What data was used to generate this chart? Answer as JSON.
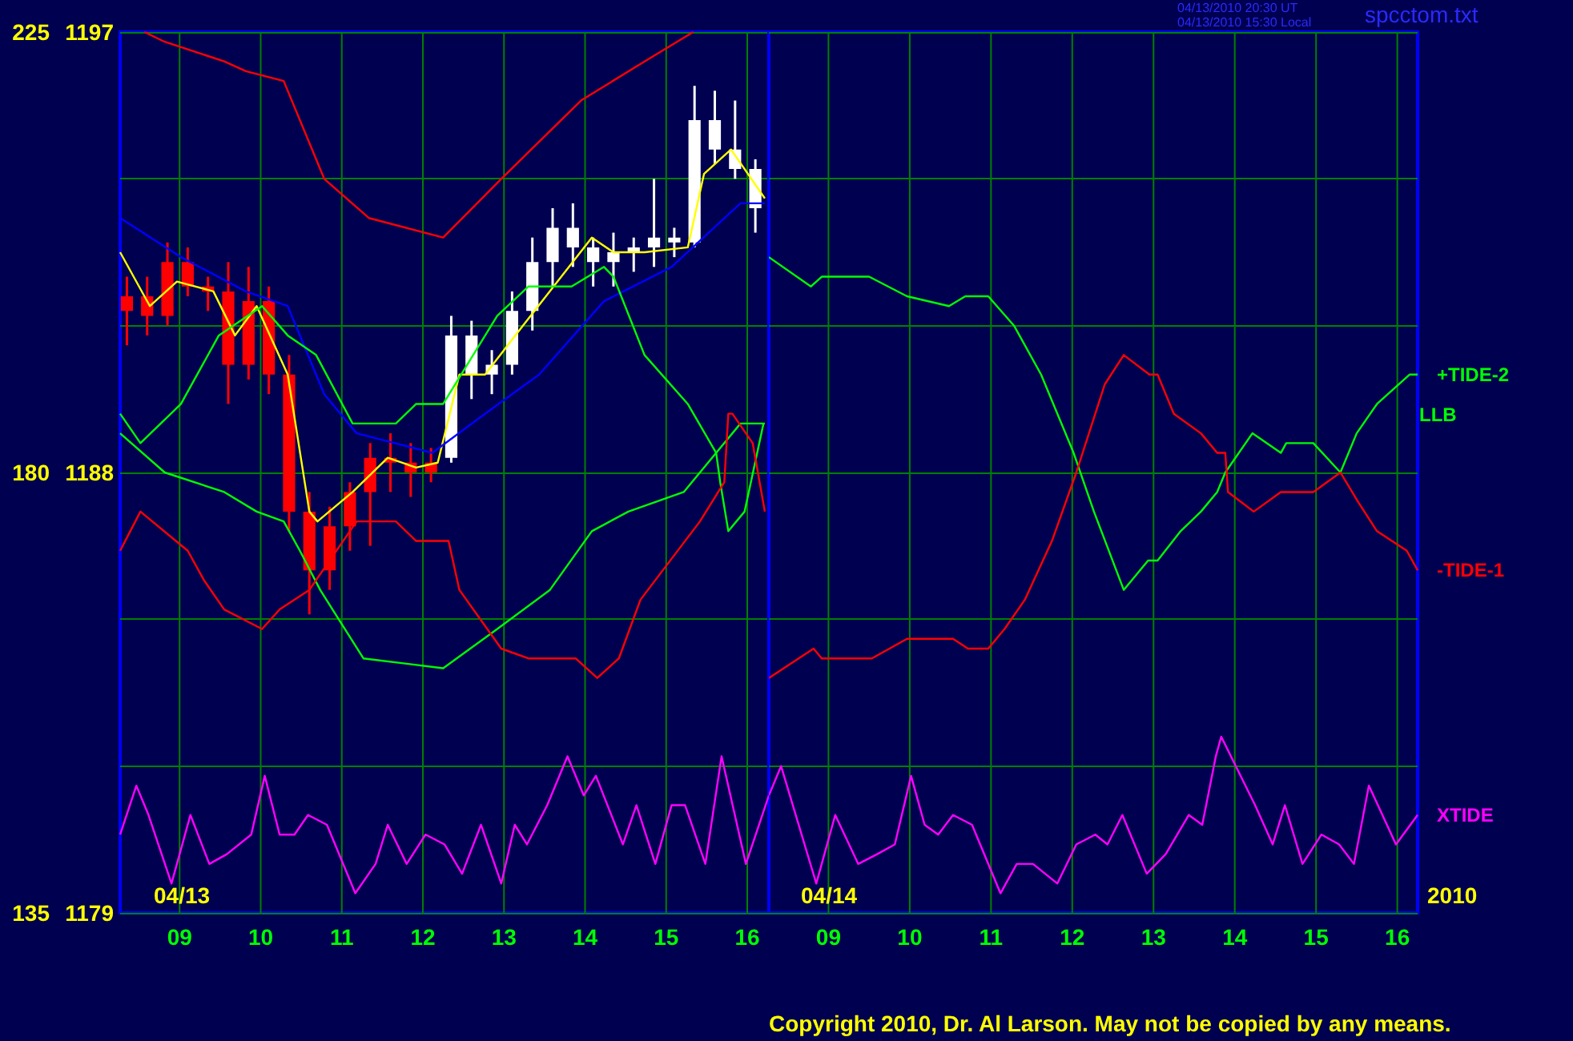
{
  "chart_data": [
    {
      "type": "candlestick",
      "xlim": [
        "2010-04-13T08:16",
        "2010-04-13T16:16"
      ],
      "xticks": [
        {
          "value": "2010-04-13T09:00",
          "label": "09"
        },
        {
          "value": "2010-04-13T10:00",
          "label": "10"
        },
        {
          "value": "2010-04-13T11:00",
          "label": "11"
        },
        {
          "value": "2010-04-13T12:00",
          "label": "12"
        },
        {
          "value": "2010-04-13T13:00",
          "label": "13"
        },
        {
          "value": "2010-04-13T14:00",
          "label": "14"
        },
        {
          "value": "2010-04-13T15:00",
          "label": "15"
        },
        {
          "value": "2010-04-13T16:00",
          "label": "16"
        }
      ],
      "ylim": [
        1179,
        1197
      ],
      "yticks": [
        1179,
        {
          "value": 1182,
          "label": null
        },
        {
          "value": 1185,
          "label": null
        },
        1188,
        {
          "value": 1191,
          "label": null
        },
        {
          "value": 1194,
          "label": null
        },
        1197
      ],
      "y2lim": [
        135,
        225
      ],
      "y2ticks": [
        135,
        {
          "value": 150,
          "label": null
        },
        {
          "value": 165,
          "label": null
        },
        180,
        {
          "value": 195,
          "label": null
        },
        {
          "value": 210,
          "label": null
        },
        225
      ],
      "grid": true,
      "marker": "none",
      "ref_lines": [
        {
          "axis": "x",
          "value": "2010-04-13T16:16",
          "color": "#0000ff"
        }
      ],
      "annotations": [
        "04/13"
      ],
      "series": [
        {
          "color": "#ff0000",
          "x": [
            "2010-04-13T08:21",
            "2010-04-13T08:36",
            "2010-04-13T08:51",
            "2010-04-13T09:06",
            "2010-04-13T09:21",
            "2010-04-13T09:36",
            "2010-04-13T09:51",
            "2010-04-13T10:06",
            "2010-04-13T10:21",
            "2010-04-13T10:36",
            "2010-04-13T10:51",
            "2010-04-13T11:06",
            "2010-04-13T11:21",
            "2010-04-13T11:36",
            "2010-04-13T11:51",
            "2010-04-13T12:06"
          ],
          "ohlc": [
            [
              1191.6,
              1192.0,
              1190.6,
              1191.3
            ],
            [
              1191.6,
              1192.0,
              1190.8,
              1191.2
            ],
            [
              1192.3,
              1192.7,
              1191.0,
              1191.2
            ],
            [
              1192.3,
              1192.6,
              1191.6,
              1191.8
            ],
            [
              1191.8,
              1192.0,
              1191.3,
              1191.7
            ],
            [
              1191.7,
              1192.3,
              1189.4,
              1190.2
            ],
            [
              1191.5,
              1192.2,
              1189.9,
              1190.2
            ],
            [
              1191.5,
              1191.8,
              1189.6,
              1190.0
            ],
            [
              1190.0,
              1190.4,
              1186.8,
              1187.2
            ],
            [
              1187.2,
              1187.6,
              1185.1,
              1186.0
            ],
            [
              1186.9,
              1187.3,
              1185.6,
              1186.0
            ],
            [
              1187.6,
              1187.8,
              1186.4,
              1186.9
            ],
            [
              1188.3,
              1188.6,
              1186.5,
              1187.6
            ],
            [
              1188.3,
              1188.8,
              1187.6,
              1188.2
            ],
            [
              1188.2,
              1188.6,
              1187.5,
              1188.0
            ],
            [
              1188.2,
              1188.5,
              1187.8,
              1188.0
            ]
          ]
        },
        {
          "color": "#ffffff",
          "x": [
            "2010-04-13T12:21",
            "2010-04-13T12:36",
            "2010-04-13T12:51",
            "2010-04-13T13:06",
            "2010-04-13T13:21",
            "2010-04-13T13:36",
            "2010-04-13T13:51",
            "2010-04-13T14:06",
            "2010-04-13T14:21",
            "2010-04-13T14:36",
            "2010-04-13T14:51",
            "2010-04-13T15:06",
            "2010-04-13T15:21",
            "2010-04-13T15:36",
            "2010-04-13T15:51",
            "2010-04-13T16:06"
          ],
          "ohlc": [
            [
              1188.3,
              1191.2,
              1188.2,
              1190.8
            ],
            [
              1190.0,
              1191.1,
              1189.5,
              1190.8
            ],
            [
              1190.0,
              1190.5,
              1189.6,
              1190.2
            ],
            [
              1190.2,
              1191.7,
              1190.0,
              1191.3
            ],
            [
              1191.3,
              1192.8,
              1190.9,
              1192.3
            ],
            [
              1192.3,
              1193.4,
              1191.8,
              1193.0
            ],
            [
              1192.6,
              1193.5,
              1192.2,
              1193.0
            ],
            [
              1192.3,
              1192.8,
              1191.8,
              1192.6
            ],
            [
              1192.3,
              1192.9,
              1191.8,
              1192.5
            ],
            [
              1192.5,
              1192.8,
              1192.1,
              1192.6
            ],
            [
              1192.6,
              1194.0,
              1192.2,
              1192.8
            ],
            [
              1192.7,
              1193.0,
              1192.4,
              1192.8
            ],
            [
              1192.7,
              1195.9,
              1192.6,
              1195.2
            ],
            [
              1194.6,
              1195.8,
              1194.3,
              1195.2
            ],
            [
              1194.2,
              1195.6,
              1194.0,
              1194.6
            ],
            [
              1193.4,
              1194.4,
              1192.9,
              1194.2
            ]
          ]
        },
        {
          "type": "line",
          "color": "#ffff00",
          "x": [
            "2010-04-13T08:16",
            "2010-04-13T08:38",
            "2010-04-13T08:58",
            "2010-04-13T09:25",
            "2010-04-13T09:41",
            "2010-04-13T09:57",
            "2010-04-13T10:20",
            "2010-04-13T10:36",
            "2010-04-13T10:42",
            "2010-04-13T11:08",
            "2010-04-13T11:34",
            "2010-04-13T11:55",
            "2010-04-13T12:11",
            "2010-04-13T12:27",
            "2010-04-13T12:46",
            "2010-04-13T13:14",
            "2010-04-13T14:05",
            "2010-04-13T14:21",
            "2010-04-13T14:44",
            "2010-04-13T15:16",
            "2010-04-13T15:28",
            "2010-04-13T15:48",
            "2010-04-13T16:13"
          ],
          "values": [
            1192.5,
            1191.4,
            1191.9,
            1191.7,
            1190.8,
            1191.4,
            1190.0,
            1187.2,
            1187.0,
            1187.6,
            1188.3,
            1188.1,
            1188.2,
            1190.0,
            1190.0,
            1191.0,
            1192.8,
            1192.5,
            1192.5,
            1192.6,
            1194.1,
            1194.6,
            1193.6
          ]
        },
        {
          "type": "line",
          "color": "#0000ff",
          "x": [
            "2010-04-13T08:16",
            "2010-04-13T09:01",
            "2010-04-13T09:49",
            "2010-04-13T10:20",
            "2010-04-13T10:47",
            "2010-04-13T11:11",
            "2010-04-13T12:07",
            "2010-04-13T12:46",
            "2010-04-13T13:26",
            "2010-04-13T14:14",
            "2010-04-13T15:04",
            "2010-04-13T15:55",
            "2010-04-13T16:13"
          ],
          "values": [
            1193.2,
            1192.4,
            1191.7,
            1191.4,
            1189.6,
            1188.8,
            1188.4,
            1189.2,
            1190.0,
            1191.5,
            1192.2,
            1193.5,
            1193.5
          ]
        },
        {
          "type": "line",
          "color": "#ff0000",
          "axis": "y2",
          "x": [
            "2010-04-13T08:34",
            "2010-04-13T08:49",
            "2010-04-13T09:33",
            "2010-04-13T09:49",
            "2010-04-13T10:17",
            "2010-04-13T10:47",
            "2010-04-13T11:20",
            "2010-04-13T12:15",
            "2010-04-13T12:58",
            "2010-04-13T13:57",
            "2010-04-13T14:44",
            "2010-04-13T15:20"
          ],
          "values": [
            225,
            224,
            222,
            221,
            220,
            210,
            206,
            204,
            210,
            218,
            222,
            225
          ]
        },
        {
          "type": "line",
          "color": "#00ff00",
          "axis": "y2",
          "x": [
            "2010-04-13T08:16",
            "2010-04-13T08:31",
            "2010-04-13T09:01",
            "2010-04-13T09:29",
            "2010-04-13T10:01",
            "2010-04-13T10:20",
            "2010-04-13T10:41",
            "2010-04-13T11:08",
            "2010-04-13T11:40",
            "2010-04-13T11:55",
            "2010-04-13T12:15",
            "2010-04-13T12:55",
            "2010-04-13T13:18",
            "2010-04-13T13:50",
            "2010-04-13T14:14",
            "2010-04-13T14:21",
            "2010-04-13T14:44",
            "2010-04-13T15:16",
            "2010-04-13T15:37",
            "2010-04-13T15:40",
            "2010-04-13T15:46",
            "2010-04-13T15:58",
            "2010-04-13T16:12"
          ],
          "values": [
            186,
            183,
            187,
            194,
            197,
            194,
            192,
            185,
            185,
            187,
            187,
            196,
            199,
            199,
            201,
            200,
            192,
            187,
            182,
            179,
            174,
            176,
            185
          ]
        },
        {
          "type": "line",
          "color": "#00ff00",
          "axis": "y2",
          "x": [
            "2010-04-13T08:16",
            "2010-04-13T08:49",
            "2010-04-13T09:33",
            "2010-04-13T09:57",
            "2010-04-13T10:17",
            "2010-04-13T10:29",
            "2010-04-13T10:44",
            "2010-04-13T11:16",
            "2010-04-13T12:15",
            "2010-04-13T12:55",
            "2010-04-13T13:34",
            "2010-04-13T14:05",
            "2010-04-13T14:32",
            "2010-04-13T15:13",
            "2010-04-13T15:37",
            "2010-04-13T15:55",
            "2010-04-13T16:13"
          ],
          "values": [
            184,
            180,
            178,
            176,
            175,
            172,
            168,
            161,
            160,
            164,
            168,
            174,
            176,
            178,
            182,
            185,
            185
          ]
        },
        {
          "type": "line",
          "color": "#ff0000",
          "axis": "y2",
          "x": [
            "2010-04-13T08:16",
            "2010-04-13T08:31",
            "2010-04-13T09:06",
            "2010-04-13T09:18",
            "2010-04-13T09:33",
            "2010-04-13T10:01",
            "2010-04-13T10:14",
            "2010-04-13T10:36",
            "2010-04-13T11:11",
            "2010-04-13T11:40",
            "2010-04-13T11:55",
            "2010-04-13T12:19",
            "2010-04-13T12:27",
            "2010-04-13T12:58",
            "2010-04-13T13:18",
            "2010-04-13T13:53",
            "2010-04-13T14:09",
            "2010-04-13T14:25",
            "2010-04-13T14:41",
            "2010-04-13T15:25",
            "2010-04-13T15:43",
            "2010-04-13T15:46",
            "2010-04-13T15:49",
            "2010-04-13T16:04",
            "2010-04-13T16:13"
          ],
          "values": [
            172,
            176,
            172,
            169,
            166,
            164,
            166,
            168,
            175,
            175,
            173,
            173,
            168,
            162,
            161,
            161,
            159,
            161,
            167,
            175,
            179,
            186,
            186,
            183,
            176
          ]
        },
        {
          "type": "line",
          "color": "#ff00ff",
          "axis": "y2",
          "x": [
            "2010-04-13T08:16",
            "2010-04-13T08:28",
            "2010-04-13T08:37",
            "2010-04-13T08:54",
            "2010-04-13T09:08",
            "2010-04-13T09:22",
            "2010-04-13T09:35",
            "2010-04-13T09:53",
            "2010-04-13T10:03",
            "2010-04-13T10:14",
            "2010-04-13T10:25",
            "2010-04-13T10:35",
            "2010-04-13T10:49",
            "2010-04-13T11:10",
            "2010-04-13T11:25",
            "2010-04-13T11:34",
            "2010-04-13T11:48",
            "2010-04-13T12:02",
            "2010-04-13T12:16",
            "2010-04-13T12:29",
            "2010-04-13T12:43",
            "2010-04-13T12:58",
            "2010-04-13T13:08",
            "2010-04-13T13:17",
            "2010-04-13T13:32",
            "2010-04-13T13:47",
            "2010-04-13T13:59",
            "2010-04-13T14:08",
            "2010-04-13T14:28",
            "2010-04-13T14:38",
            "2010-04-13T14:52",
            "2010-04-13T15:04",
            "2010-04-13T15:14",
            "2010-04-13T15:29",
            "2010-04-13T15:41",
            "2010-04-13T15:59",
            "2010-04-13T16:16"
          ],
          "values": [
            143,
            148,
            145,
            138,
            145,
            140,
            141,
            143,
            149,
            143,
            143,
            145,
            144,
            137,
            140,
            144,
            140,
            143,
            142,
            139,
            144,
            138,
            144,
            142,
            146,
            151,
            147,
            149,
            142,
            146,
            140,
            146,
            146,
            140,
            151,
            140,
            147
          ]
        }
      ]
    },
    {
      "type": "line",
      "xlim": [
        "2010-04-14T08:16",
        "2010-04-14T16:15"
      ],
      "xticks": [
        {
          "value": "2010-04-14T09:00",
          "label": "09"
        },
        {
          "value": "2010-04-14T10:00",
          "label": "10"
        },
        {
          "value": "2010-04-14T11:00",
          "label": "11"
        },
        {
          "value": "2010-04-14T12:00",
          "label": "12"
        },
        {
          "value": "2010-04-14T13:00",
          "label": "13"
        },
        {
          "value": "2010-04-14T14:00",
          "label": "14"
        },
        {
          "value": "2010-04-14T15:00",
          "label": "15"
        },
        {
          "value": "2010-04-14T16:00",
          "label": "16"
        }
      ],
      "ylim": [
        1179,
        1197
      ],
      "yticks": [
        1179,
        {
          "value": 1182,
          "label": null
        },
        {
          "value": 1185,
          "label": null
        },
        1188,
        {
          "value": 1191,
          "label": null
        },
        {
          "value": 1194,
          "label": null
        },
        1197
      ],
      "y2lim": [
        135,
        225
      ],
      "y2ticks": [
        135,
        {
          "value": 150,
          "label": null
        },
        {
          "value": 165,
          "label": null
        },
        180,
        {
          "value": 195,
          "label": null
        },
        {
          "value": 210,
          "label": null
        },
        225
      ],
      "tick_labels": "x",
      "grid": true,
      "marker": "none",
      "annotations": [
        "04/13/2010 20:30 UT",
        "04/13/2010 15:30 Local",
        "spcctom.txt",
        "04/14",
        "2010",
        "LLB",
        "Copyright 2010, Dr. Al Larson. May not be copied by any means."
      ],
      "series": [
        {
          "name": "+TIDE-2",
          "color": "#00ff00",
          "axis": "y2",
          "x": [
            "2010-04-14T08:16",
            "2010-04-14T08:47",
            "2010-04-14T08:55",
            "2010-04-14T09:30",
            "2010-04-14T09:58",
            "2010-04-14T10:29",
            "2010-04-14T10:41",
            "2010-04-14T10:58",
            "2010-04-14T11:17",
            "2010-04-14T11:37",
            "2010-04-14T12:01",
            "2010-04-14T12:16",
            "2010-04-14T12:38",
            "2010-04-14T12:56",
            "2010-04-14T13:03",
            "2010-04-14T13:20",
            "2010-04-14T13:35",
            "2010-04-14T13:47",
            "2010-04-14T13:53",
            "2010-04-14T14:13",
            "2010-04-14T14:34",
            "2010-04-14T14:38",
            "2010-04-14T14:58",
            "2010-04-14T15:18",
            "2010-04-14T15:30",
            "2010-04-14T15:45",
            "2010-04-14T16:09",
            "2010-04-14T16:15"
          ],
          "values": [
            202,
            199,
            200,
            200,
            198,
            197,
            198,
            198,
            195,
            190,
            182,
            176,
            168,
            171,
            171,
            174,
            176,
            178,
            180,
            184,
            182,
            183,
            183,
            180,
            184,
            187,
            190,
            190
          ]
        },
        {
          "name": "-TIDE-1",
          "color": "#ff0000",
          "axis": "y2",
          "x": [
            "2010-04-14T08:16",
            "2010-04-14T08:49",
            "2010-04-14T08:55",
            "2010-04-14T09:32",
            "2010-04-14T09:58",
            "2010-04-14T10:26",
            "2010-04-14T10:32",
            "2010-04-14T10:43",
            "2010-04-14T10:58",
            "2010-04-14T11:10",
            "2010-04-14T11:25",
            "2010-04-14T11:45",
            "2010-04-14T12:03",
            "2010-04-14T12:24",
            "2010-04-14T12:38",
            "2010-04-14T12:57",
            "2010-04-14T13:03",
            "2010-04-14T13:15",
            "2010-04-14T13:35",
            "2010-04-14T13:47",
            "2010-04-14T13:53",
            "2010-04-14T13:55",
            "2010-04-14T14:14",
            "2010-04-14T14:34",
            "2010-04-14T14:58",
            "2010-04-14T15:18",
            "2010-04-14T15:31",
            "2010-04-14T15:45",
            "2010-04-14T16:07",
            "2010-04-14T16:15"
          ],
          "values": [
            159,
            162,
            161,
            161,
            163,
            163,
            163,
            162,
            162,
            164,
            167,
            173,
            180,
            189,
            192,
            190,
            190,
            186,
            184,
            182,
            182,
            178,
            176,
            178,
            178,
            180,
            177,
            174,
            172,
            170
          ]
        },
        {
          "name": "XTIDE",
          "color": "#ff00ff",
          "axis": "y2",
          "x": [
            "2010-04-14T08:16",
            "2010-04-14T08:25",
            "2010-04-14T08:51",
            "2010-04-14T09:05",
            "2010-04-14T09:22",
            "2010-04-14T09:36",
            "2010-04-14T09:49",
            "2010-04-14T10:01",
            "2010-04-14T10:11",
            "2010-04-14T10:21",
            "2010-04-14T10:32",
            "2010-04-14T10:46",
            "2010-04-14T11:07",
            "2010-04-14T11:19",
            "2010-04-14T11:31",
            "2010-04-14T11:49",
            "2010-04-14T12:03",
            "2010-04-14T12:17",
            "2010-04-14T12:26",
            "2010-04-14T12:37",
            "2010-04-14T12:55",
            "2010-04-14T13:09",
            "2010-04-14T13:26",
            "2010-04-14T13:36",
            "2010-04-14T13:46",
            "2010-04-14T13:50",
            "2010-04-14T14:15",
            "2010-04-14T14:28",
            "2010-04-14T14:37",
            "2010-04-14T14:50",
            "2010-04-14T15:04",
            "2010-04-14T15:17",
            "2010-04-14T15:28",
            "2010-04-14T15:39",
            "2010-04-14T15:59",
            "2010-04-14T16:15"
          ],
          "values": [
            147,
            150,
            138,
            145,
            140,
            141,
            142,
            149,
            144,
            143,
            145,
            144,
            137,
            140,
            140,
            138,
            142,
            143,
            142,
            145,
            139,
            141,
            145,
            144,
            151,
            153,
            146,
            142,
            146,
            140,
            143,
            142,
            140,
            148,
            142,
            145
          ]
        }
      ]
    }
  ]
}
